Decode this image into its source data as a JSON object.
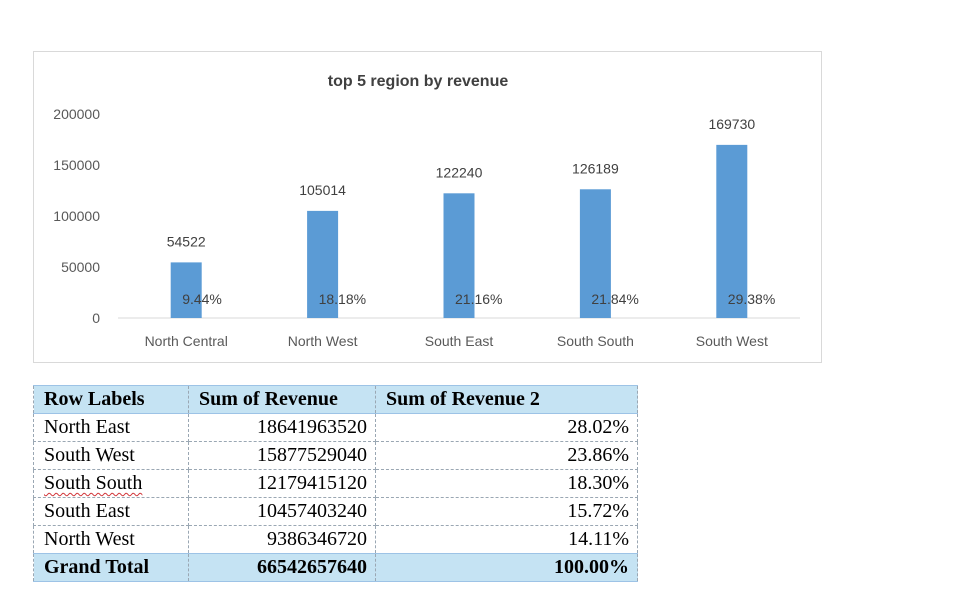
{
  "chart_data": {
    "type": "bar",
    "title": "top 5 region by revenue",
    "categories": [
      "North Central",
      "North West",
      "South East",
      "South South",
      "South West"
    ],
    "series": [
      {
        "values": [
          54522,
          105014,
          122240,
          126189,
          169730
        ]
      }
    ],
    "secondary_labels": [
      "9.44%",
      "18.18%",
      "21.16%",
      "21.84%",
      "29.38%"
    ],
    "y_ticks": [
      0,
      50000,
      100000,
      150000,
      200000
    ],
    "ylim": [
      0,
      200000
    ],
    "grid": false,
    "bar_color": "#5b9bd5"
  },
  "table": {
    "headers": [
      "Row Labels",
      "Sum of Revenue",
      "Sum of Revenue 2"
    ],
    "rows": [
      [
        "North East",
        "18641963520",
        "28.02%"
      ],
      [
        "South West",
        "15877529040",
        "23.86%"
      ],
      [
        "South South",
        "12179415120",
        "18.30%"
      ],
      [
        "South East",
        "10457403240",
        "15.72%"
      ],
      [
        "North West",
        "9386346720",
        "14.11%"
      ]
    ],
    "total": [
      "Grand Total",
      "66542657640",
      "100.00%"
    ],
    "header_color": "#c5e3f3"
  }
}
